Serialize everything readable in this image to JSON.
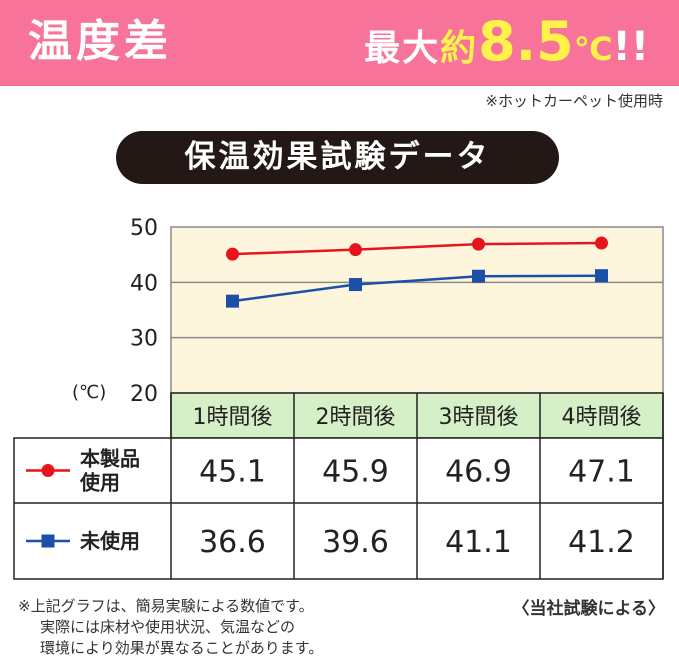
{
  "banner": {
    "left_text": "温度差",
    "pre_text": "最大",
    "yokusu": "約",
    "value_text": "8.5",
    "unit_text": "℃",
    "exclaim": "!!",
    "accent_color": "#f7739a",
    "highlight_color": "#fff34a"
  },
  "note_top": "※ホットカーペット使用時",
  "chart_title": "保温効果試験データ",
  "chart_data": {
    "type": "line",
    "title": "保温効果試験データ",
    "ylabel": "(℃)",
    "xlabel": "",
    "ylim": [
      20,
      50
    ],
    "yticks": [
      50,
      40,
      30,
      20
    ],
    "categories": [
      "1時間後",
      "2時間後",
      "3時間後",
      "4時間後"
    ],
    "series": [
      {
        "name": "本製品使用",
        "name_lines": [
          "本製品",
          "使用"
        ],
        "color": "#e8141b",
        "marker": "circle",
        "values": [
          45.1,
          45.9,
          46.9,
          47.1
        ]
      },
      {
        "name": "未使用",
        "name_lines": [
          "未使用"
        ],
        "color": "#1b4fa8",
        "marker": "square",
        "values": [
          36.6,
          39.6,
          41.1,
          41.2
        ]
      }
    ],
    "grid": true,
    "plot_background": "#fdf6dc",
    "header_background": "#d5efc7"
  },
  "footnote": {
    "line1": "※上記グラフは、簡易実験による数値です。",
    "line2": "実際には床材や使用状況、気温などの",
    "line3": "環境により効果が異なることがあります。"
  },
  "source": "〈当社試験による〉"
}
